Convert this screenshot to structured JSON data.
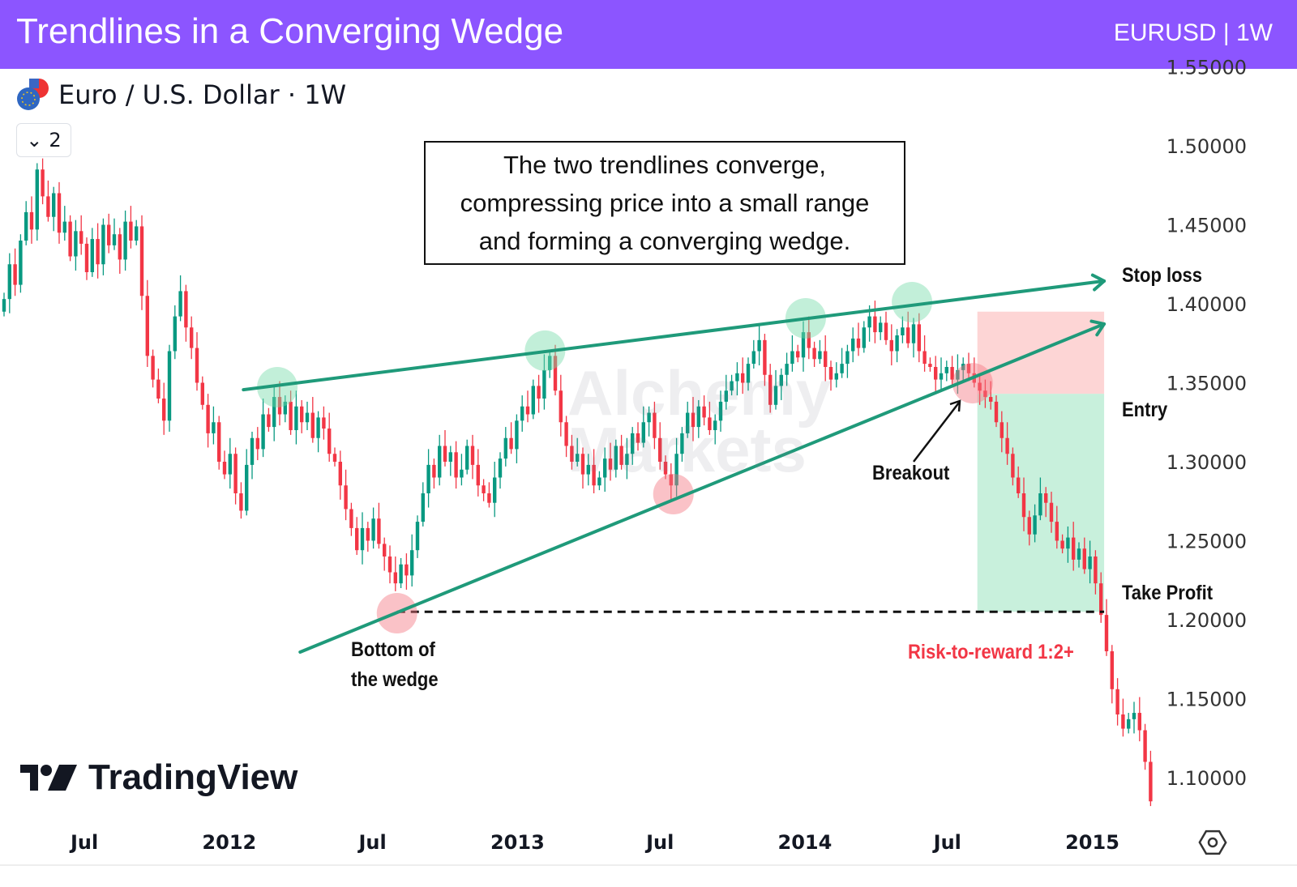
{
  "header": {
    "title": "Trendlines in a Converging Wedge",
    "symbol_badge": "EURUSD | 1W"
  },
  "legend": {
    "symbol_title": "Euro / U.S. Dollar · 1W",
    "collapse_count": "2"
  },
  "annotation_box": {
    "lines": [
      "The two trendlines converge,",
      "compressing price into a small range",
      "and forming a converging wedge."
    ]
  },
  "labels": {
    "stop_loss": "Stop loss",
    "entry": "Entry",
    "take_profit": "Take Profit",
    "breakout": "Breakout",
    "bottom_line1": "Bottom of",
    "bottom_line2": "the wedge",
    "risk_reward": "Risk-to-reward 1:2+"
  },
  "watermark": {
    "line1": "Alchemy",
    "line2": "Markets"
  },
  "logo": {
    "text": "TradingView"
  },
  "colors": {
    "header": "#8c55ff",
    "up": "#089981",
    "down": "#f23645",
    "trendline": "#1f9a7a",
    "risk_reward_text": "#f23645",
    "stop_zone": "#fdd5d5",
    "target_zone": "#c8f0dc"
  },
  "chart_data": {
    "type": "candlestick",
    "interval": "1W",
    "start_week": "2011-03-21",
    "first_open": 1.395,
    "closes": [
      1.403,
      1.425,
      1.412,
      1.44,
      1.458,
      1.447,
      1.485,
      1.468,
      1.455,
      1.47,
      1.445,
      1.452,
      1.43,
      1.446,
      1.438,
      1.42,
      1.441,
      1.425,
      1.45,
      1.437,
      1.444,
      1.428,
      1.452,
      1.44,
      1.449,
      1.405,
      1.367,
      1.352,
      1.34,
      1.326,
      1.37,
      1.392,
      1.408,
      1.385,
      1.372,
      1.35,
      1.336,
      1.318,
      1.325,
      1.3,
      1.292,
      1.305,
      1.28,
      1.269,
      1.298,
      1.315,
      1.308,
      1.33,
      1.322,
      1.341,
      1.33,
      1.338,
      1.32,
      1.335,
      1.325,
      1.331,
      1.315,
      1.328,
      1.321,
      1.305,
      1.3,
      1.285,
      1.27,
      1.258,
      1.244,
      1.258,
      1.25,
      1.264,
      1.248,
      1.24,
      1.23,
      1.223,
      1.235,
      1.228,
      1.244,
      1.262,
      1.28,
      1.298,
      1.29,
      1.31,
      1.3,
      1.306,
      1.29,
      1.295,
      1.31,
      1.298,
      1.285,
      1.28,
      1.274,
      1.29,
      1.302,
      1.315,
      1.308,
      1.326,
      1.335,
      1.33,
      1.348,
      1.34,
      1.358,
      1.367,
      1.345,
      1.325,
      1.31,
      1.3,
      1.305,
      1.292,
      1.298,
      1.285,
      1.29,
      1.302,
      1.295,
      1.31,
      1.298,
      1.305,
      1.318,
      1.312,
      1.325,
      1.331,
      1.315,
      1.3,
      1.292,
      1.285,
      1.305,
      1.318,
      1.331,
      1.322,
      1.335,
      1.328,
      1.32,
      1.326,
      1.338,
      1.345,
      1.351,
      1.356,
      1.35,
      1.362,
      1.37,
      1.377,
      1.355,
      1.336,
      1.348,
      1.355,
      1.362,
      1.37,
      1.366,
      1.382,
      1.372,
      1.365,
      1.37,
      1.36,
      1.352,
      1.356,
      1.362,
      1.37,
      1.378,
      1.372,
      1.385,
      1.392,
      1.382,
      1.388,
      1.377,
      1.37,
      1.38,
      1.385,
      1.375,
      1.387,
      1.37,
      1.362,
      1.36,
      1.352,
      1.356,
      1.36,
      1.352,
      1.358,
      1.362,
      1.356,
      1.35,
      1.345,
      1.341,
      1.338,
      1.325,
      1.315,
      1.305,
      1.29,
      1.28,
      1.265,
      1.254,
      1.266,
      1.28,
      1.274,
      1.262,
      1.25,
      1.245,
      1.252,
      1.238,
      1.245,
      1.232,
      1.24,
      1.223,
      1.203,
      1.18,
      1.156,
      1.14,
      1.131,
      1.137,
      1.141,
      1.13,
      1.11,
      1.085
    ],
    "y_ticks": [
      "1.55000",
      "1.50000",
      "1.45000",
      "1.40000",
      "1.35000",
      "1.30000",
      "1.25000",
      "1.20000",
      "1.15000",
      "1.10000"
    ],
    "x_ticks": [
      {
        "label": "Jul",
        "date": "2011-07-01"
      },
      {
        "label": "2012",
        "date": "2012-01-01"
      },
      {
        "label": "Jul",
        "date": "2012-07-01"
      },
      {
        "label": "2013",
        "date": "2013-01-01"
      },
      {
        "label": "Jul",
        "date": "2013-07-01"
      },
      {
        "label": "2014",
        "date": "2014-01-01"
      },
      {
        "label": "Jul",
        "date": "2014-07-01"
      },
      {
        "label": "2015",
        "date": "2015-01-01"
      }
    ],
    "trendlines": [
      {
        "name": "upper",
        "from": {
          "date": "2012-01-19",
          "price": 1.3456
        },
        "to": {
          "date": "2015-01-16",
          "price": 1.4144
        }
      },
      {
        "name": "lower",
        "from": {
          "date": "2012-03-31",
          "price": 1.1795
        },
        "to": {
          "date": "2015-01-16",
          "price": 1.3872
        }
      }
    ],
    "touches_upper": [
      {
        "date": "2012-03-02",
        "price": 1.3472
      },
      {
        "date": "2013-02-05",
        "price": 1.3703
      },
      {
        "date": "2014-01-02",
        "price": 1.3908
      },
      {
        "date": "2014-05-17",
        "price": 1.401
      }
    ],
    "touches_lower": [
      {
        "date": "2012-08-01",
        "price": 1.2041
      },
      {
        "date": "2013-07-18",
        "price": 1.2795
      },
      {
        "date": "2014-08-02",
        "price": 1.3497
      }
    ],
    "trade": {
      "start": "2014-08-08",
      "end": "2015-01-16",
      "stop_loss": 1.395,
      "entry": 1.343,
      "take_profit": 1.205,
      "tp_line_start": "2012-08-01"
    }
  }
}
